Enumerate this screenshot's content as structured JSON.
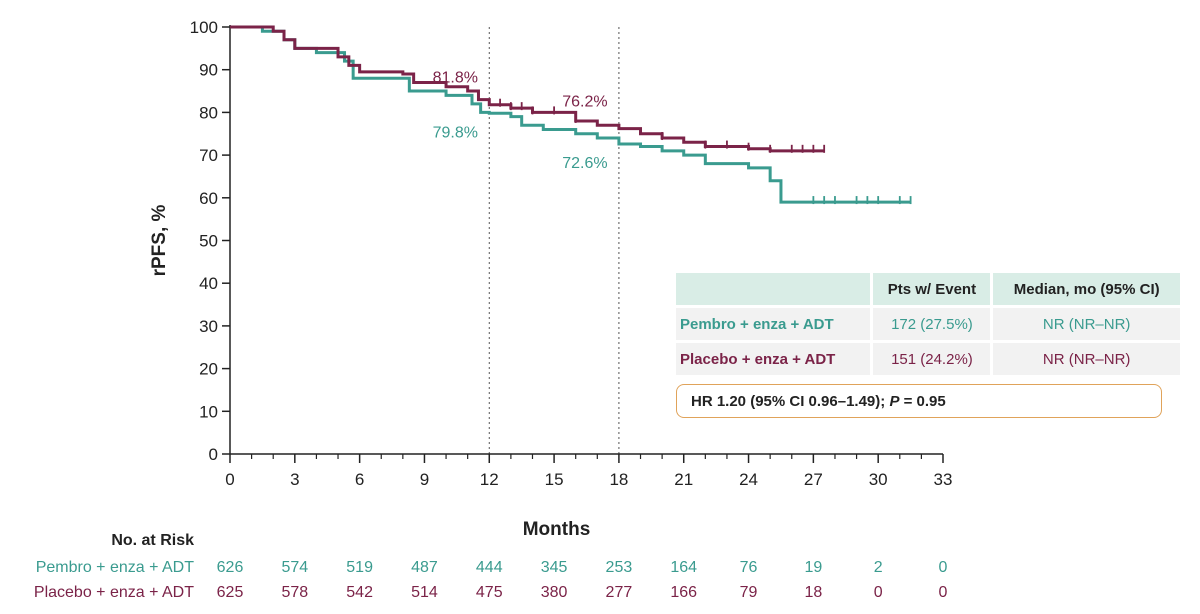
{
  "colors": {
    "pembro": "#3a9b8f",
    "placebo": "#7b2348",
    "tableHeader": "#d9ede6",
    "hrBorder": "#e0a35a"
  },
  "chart_data": {
    "type": "line",
    "subtype": "kaplan-meier",
    "title": "",
    "xlabel": "Months",
    "ylabel": "rPFS, %",
    "xlim": [
      0,
      33
    ],
    "ylim": [
      0,
      100
    ],
    "x_ticks": [
      "0",
      "3",
      "6",
      "9",
      "12",
      "15",
      "18",
      "21",
      "24",
      "27",
      "30",
      "33"
    ],
    "y_ticks": [
      "0",
      "10",
      "20",
      "30",
      "40",
      "50",
      "60",
      "70",
      "80",
      "90",
      "100"
    ],
    "reference_lines_x": [
      12,
      18
    ],
    "series": [
      {
        "name": "Pembro + enza + ADT",
        "color": "#3a9b8f",
        "points": [
          [
            0,
            100
          ],
          [
            1.5,
            99
          ],
          [
            2.5,
            97
          ],
          [
            3,
            95
          ],
          [
            4,
            94
          ],
          [
            5.3,
            92
          ],
          [
            5.7,
            88
          ],
          [
            7,
            88
          ],
          [
            8.3,
            85
          ],
          [
            10,
            84
          ],
          [
            11.2,
            82
          ],
          [
            11.6,
            80
          ],
          [
            12,
            79.8
          ],
          [
            13,
            79
          ],
          [
            13.5,
            77
          ],
          [
            14.5,
            76
          ],
          [
            16,
            75
          ],
          [
            17,
            74
          ],
          [
            18,
            72.6
          ],
          [
            19,
            72
          ],
          [
            20,
            71
          ],
          [
            21,
            70
          ],
          [
            22,
            68
          ],
          [
            24,
            67
          ],
          [
            25,
            64
          ],
          [
            25.5,
            59
          ],
          [
            28,
            59
          ],
          [
            31.5,
            59
          ]
        ],
        "censor_x": [
          27,
          27.5,
          28,
          29,
          29.5,
          30,
          31,
          31.5
        ]
      },
      {
        "name": "Placebo + enza + ADT",
        "color": "#7b2348",
        "points": [
          [
            0,
            100
          ],
          [
            2,
            99
          ],
          [
            2.5,
            97
          ],
          [
            3,
            95
          ],
          [
            5,
            93
          ],
          [
            5.5,
            91
          ],
          [
            6,
            89.5
          ],
          [
            8,
            89
          ],
          [
            8.5,
            87
          ],
          [
            10,
            86
          ],
          [
            11,
            85
          ],
          [
            11.5,
            83
          ],
          [
            12,
            81.8
          ],
          [
            13,
            81
          ],
          [
            14,
            80
          ],
          [
            16,
            78
          ],
          [
            17,
            77
          ],
          [
            18,
            76.2
          ],
          [
            19,
            75
          ],
          [
            20,
            74
          ],
          [
            21,
            73
          ],
          [
            22,
            72
          ],
          [
            24,
            71.5
          ],
          [
            25,
            71
          ],
          [
            27.5,
            71
          ]
        ],
        "censor_x": [
          12.5,
          13,
          13.5,
          14,
          15,
          16,
          20,
          22,
          23,
          24,
          25,
          26,
          26.5,
          27,
          27.5
        ]
      }
    ],
    "annotations": [
      {
        "text": "81.8%",
        "x": 12,
        "y": 81.8,
        "series": "placebo",
        "position": "above"
      },
      {
        "text": "76.2%",
        "x": 18,
        "y": 76.2,
        "series": "placebo",
        "position": "above"
      },
      {
        "text": "79.8%",
        "x": 12,
        "y": 79.8,
        "series": "pembro",
        "position": "below"
      },
      {
        "text": "72.6%",
        "x": 18,
        "y": 72.6,
        "series": "pembro",
        "position": "below"
      }
    ],
    "risk_table": {
      "title": "No. at Risk",
      "times": [
        0,
        3,
        6,
        9,
        12,
        15,
        18,
        21,
        24,
        27,
        30,
        33
      ],
      "rows": [
        {
          "label": "Pembro + enza + ADT",
          "values": [
            "626",
            "574",
            "519",
            "487",
            "444",
            "345",
            "253",
            "164",
            "76",
            "19",
            "2",
            "0"
          ]
        },
        {
          "label": "Placebo + enza + ADT",
          "values": [
            "625",
            "578",
            "542",
            "514",
            "475",
            "380",
            "277",
            "166",
            "79",
            "18",
            "0",
            "0"
          ]
        }
      ]
    }
  },
  "summary_table": {
    "headers": [
      "",
      "Pts w/ Event",
      "Median, mo (95% CI)"
    ],
    "rows": [
      {
        "label": "Pembro + enza + ADT",
        "events": "172 (27.5%)",
        "median": "NR (NR–NR)"
      },
      {
        "label": "Placebo + enza + ADT",
        "events": "151 (24.2%)",
        "median": "NR (NR–NR)"
      }
    ],
    "hr_prefix": "HR 1.20 (95% CI 0.96–1.49); ",
    "hr_p_label": "P",
    "hr_p_value": " = 0.95"
  }
}
